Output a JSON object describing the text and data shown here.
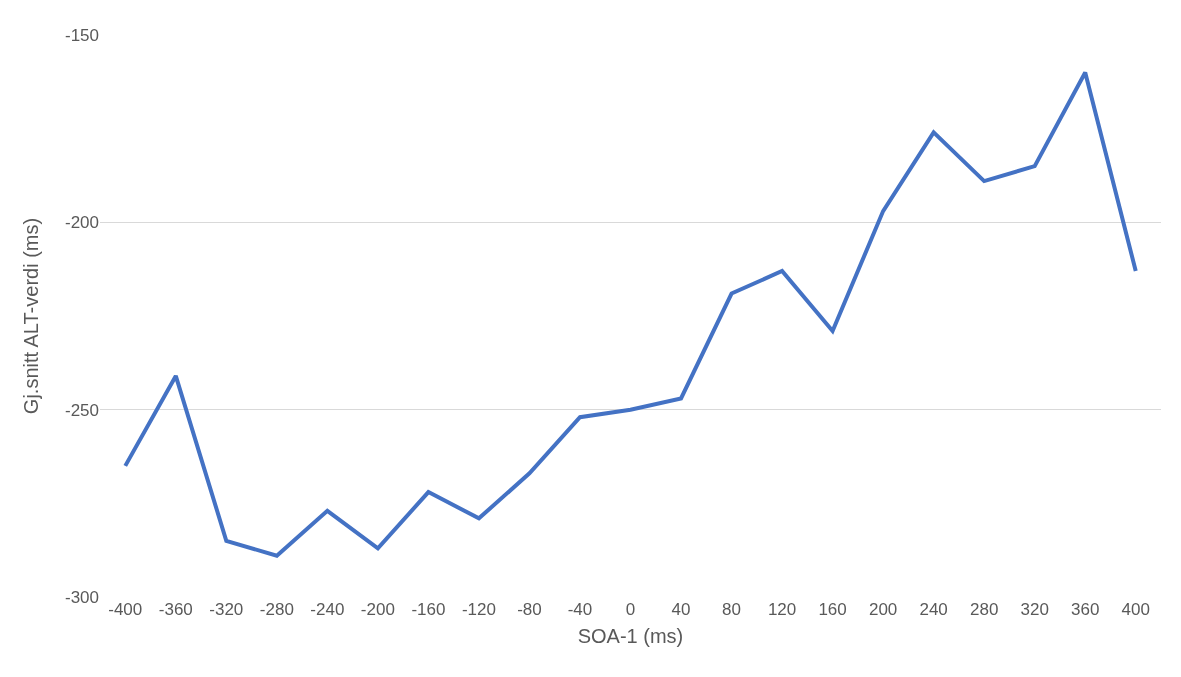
{
  "chart_data": {
    "type": "line",
    "xlabel": "SOA-1 (ms)",
    "ylabel": "Gj.snitt ALT-verdi (ms)",
    "categories": [
      "-400",
      "-360",
      "-320",
      "-280",
      "-240",
      "-200",
      "-160",
      "-120",
      "-80",
      "-40",
      "0",
      "40",
      "80",
      "120",
      "160",
      "200",
      "240",
      "280",
      "320",
      "360",
      "400"
    ],
    "series": [
      {
        "color": "#4472c4",
        "values": [
          -265,
          -241,
          -285,
          -289,
          -277,
          -287,
          -272,
          -279,
          -267,
          -252,
          -250,
          -247,
          -219,
          -213,
          -229,
          -197,
          -176,
          -189,
          -185,
          -160,
          -213
        ]
      }
    ],
    "ylim": [
      -300,
      -150
    ],
    "yticks": [
      -300,
      -250,
      -200,
      -150
    ],
    "grid": "y",
    "marker": "none",
    "line_style": "solid"
  }
}
